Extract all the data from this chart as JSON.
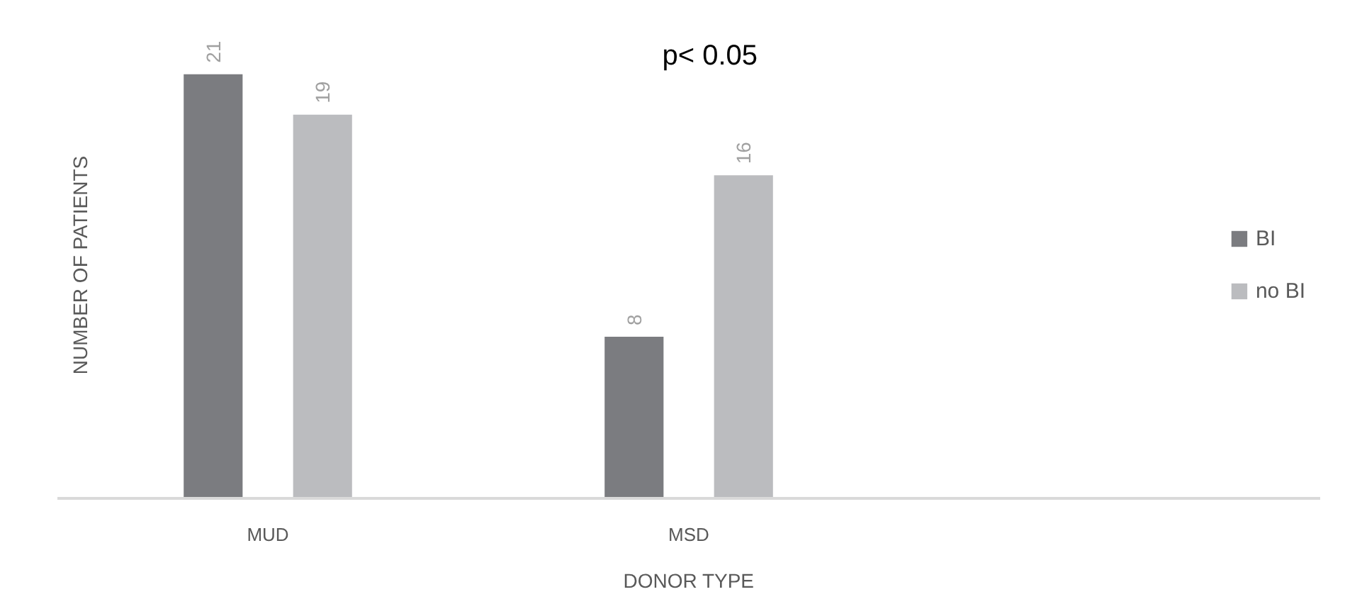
{
  "chart_data": {
    "type": "bar",
    "xlabel": "DONOR TYPE",
    "ylabel": "NUMBER OF PATIENTS",
    "categories": [
      "MUD",
      "MSD",
      null
    ],
    "series": [
      {
        "name": "BI",
        "color": "#7b7c80",
        "values": [
          21,
          8,
          null
        ]
      },
      {
        "name": "no BI",
        "color": "#bbbcbf",
        "values": [
          19,
          16,
          null
        ]
      }
    ],
    "data_labels": true,
    "legend": "right",
    "grid": false,
    "annotations": [
      "p< 0.05"
    ]
  }
}
